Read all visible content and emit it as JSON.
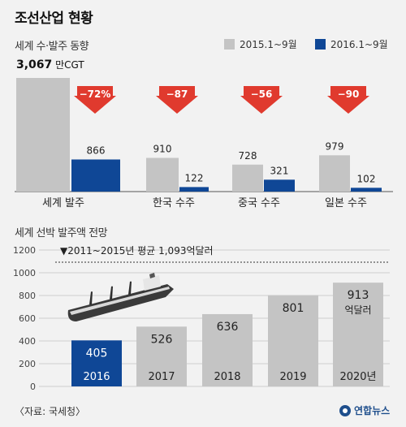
{
  "title": "조선산업 현황",
  "chart_data": [
    {
      "type": "bar",
      "subtitle": "세계 수·발주 동향",
      "unit": "만CGT",
      "categories": [
        "세계 발주",
        "한국 수주",
        "중국 수주",
        "일본 수주"
      ],
      "series": [
        {
          "name": "2015.1~9월",
          "color": "#c4c4c4",
          "values": [
            3067,
            910,
            728,
            979
          ]
        },
        {
          "name": "2016.1~9월",
          "color": "#0f4796",
          "values": [
            866,
            122,
            321,
            102
          ]
        }
      ],
      "value_labels": [
        [
          "3,067",
          "910",
          "728",
          "979"
        ],
        [
          "866",
          "122",
          "321",
          "102"
        ]
      ],
      "change_labels": [
        "−72%",
        "−87",
        "−56",
        "−90"
      ],
      "arrow_color": "#e03a2e"
    },
    {
      "type": "bar",
      "subtitle": "세계 선박 발주액 전망",
      "categories": [
        "2016",
        "2017",
        "2018",
        "2019",
        "2020년"
      ],
      "values": [
        405,
        526,
        636,
        801,
        913
      ],
      "value_labels": [
        "405",
        "526",
        "636",
        "801",
        "913"
      ],
      "highlight_color": "#0f4796",
      "bar_color": "#c4c4c4",
      "unit_note": "억달러",
      "ylim": [
        0,
        1200
      ],
      "yticks": [
        0,
        200,
        400,
        600,
        800,
        1000,
        1200
      ],
      "reference": {
        "value": 1093,
        "label": "▼2011~2015년 평균 1,093억달러"
      },
      "grid": true
    }
  ],
  "source": "〈자료: 국세청〉",
  "logo": "연합뉴스",
  "icons": {
    "ship": "ship-icon",
    "arrow": "down-arrow-icon"
  }
}
